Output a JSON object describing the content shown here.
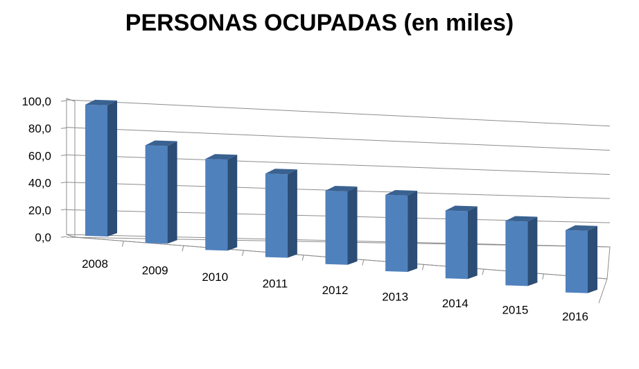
{
  "chart_data": {
    "type": "bar",
    "title": "PERSONAS OCUPADAS (en miles)",
    "categories": [
      "2008",
      "2009",
      "2010",
      "2011",
      "2012",
      "2013",
      "2014",
      "2015",
      "2016"
    ],
    "values": [
      97.0,
      73.0,
      69.0,
      64.0,
      57.0,
      60.0,
      54.0,
      52.0,
      51.0
    ],
    "ylim": [
      0,
      100
    ],
    "yticks": [
      "0,0",
      "20,0",
      "40,0",
      "60,0",
      "80,0",
      "100,0"
    ],
    "xlabel": "",
    "ylabel": "",
    "grid": true,
    "legend": "none",
    "bar_color": "#4f81bd",
    "bar_side_color": "#2c4d75",
    "bar_top_color": "#3a6291"
  }
}
